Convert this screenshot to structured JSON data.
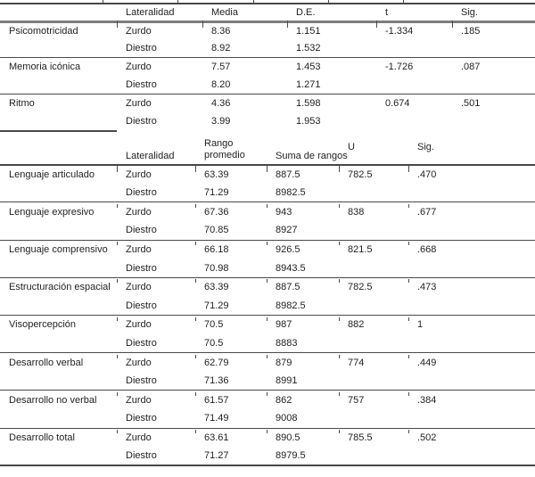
{
  "colors": {
    "text": "#1f1f1f",
    "rule_dark": "#474747",
    "rule_gray": "#7e7e7e",
    "rule_sep": "#4a4a4a"
  },
  "table1": {
    "headers": {
      "variable": "",
      "lateralidad": "Lateralidad",
      "media": "Media",
      "de": "D.E.",
      "t": "t",
      "sig": "Sig."
    },
    "groups": [
      {
        "name": "Psicomotricidad",
        "rows": [
          {
            "lat": "Zurdo",
            "media": "8.36",
            "de": "1.151",
            "t": "-1.334",
            "sig": ".185"
          },
          {
            "lat": "Diestro",
            "media": "8.92",
            "de": "1.532"
          }
        ]
      },
      {
        "name": "Memoria icónica",
        "rows": [
          {
            "lat": "Zurdo",
            "media": "7.57",
            "de": "1.453",
            "t": "-1.726",
            "sig": ".087"
          },
          {
            "lat": "Diestro",
            "media": "8.20",
            "de": "1.271"
          }
        ]
      },
      {
        "name": "Ritmo",
        "rows": [
          {
            "lat": "Zurdo",
            "media": "4.36",
            "de": "1.598",
            "t": "0.674",
            "sig": ".501"
          },
          {
            "lat": "Diestro",
            "media": "3.99",
            "de": "1.953"
          }
        ]
      }
    ]
  },
  "table2": {
    "headers": {
      "variable": "",
      "lateralidad": "Lateralidad",
      "rango_line1": "Rango",
      "rango_line2": "promedio",
      "suma": "Suma de rangos",
      "u": "U",
      "sig": "Sig."
    },
    "groups": [
      {
        "name": "Lenguaje articulado",
        "rows": [
          {
            "lat": "Zurdo",
            "rango": "63.39",
            "suma": "887.5",
            "u": "782.5",
            "sig": ".470"
          },
          {
            "lat": "Diestro",
            "rango": "71.29",
            "suma": "8982.5"
          }
        ]
      },
      {
        "name": "Lenguaje expresivo",
        "rows": [
          {
            "lat": "Zurdo",
            "rango": "67.36",
            "suma": "943",
            "u": "838",
            "sig": ".677"
          },
          {
            "lat": "Diestro",
            "rango": "70.85",
            "suma": "8927"
          }
        ]
      },
      {
        "name": "Lenguaje comprensivo",
        "rows": [
          {
            "lat": "Zurdo",
            "rango": "66.18",
            "suma": "926.5",
            "u": "821.5",
            "sig": ".668"
          },
          {
            "lat": "Diestro",
            "rango": "70.98",
            "suma": "8943.5"
          }
        ]
      },
      {
        "name": "Estructuración espacial",
        "rows": [
          {
            "lat": "Zurdo",
            "rango": "63.39",
            "suma": "887.5",
            "u": "782.5",
            "sig": ".473"
          },
          {
            "lat": "Diestro",
            "rango": "71.29",
            "suma": "8982.5"
          }
        ]
      },
      {
        "name": "Visopercepción",
        "rows": [
          {
            "lat": "Zurdo",
            "rango": "70.5",
            "suma": "987",
            "u": "882",
            "sig": "1"
          },
          {
            "lat": "Diestro",
            "rango": "70.5",
            "suma": "8883"
          }
        ]
      },
      {
        "name": "Desarrollo verbal",
        "rows": [
          {
            "lat": "Zurdo",
            "rango": "62.79",
            "suma": "879",
            "u": "774",
            "sig": ".449"
          },
          {
            "lat": "Diestro",
            "rango": "71.36",
            "suma": "8991"
          }
        ]
      },
      {
        "name": "Desarrollo no verbal",
        "rows": [
          {
            "lat": "Zurdo",
            "rango": "61.57",
            "suma": "862",
            "u": "757",
            "sig": ".384"
          },
          {
            "lat": "Diestro",
            "rango": "71.49",
            "suma": "9008"
          }
        ]
      },
      {
        "name": "Desarrollo total",
        "rows": [
          {
            "lat": "Zurdo",
            "rango": "63.61",
            "suma": "890.5",
            "u": "785.5",
            "sig": ".502"
          },
          {
            "lat": "Diestro",
            "rango": "71.27",
            "suma": "8979.5"
          }
        ]
      }
    ]
  }
}
